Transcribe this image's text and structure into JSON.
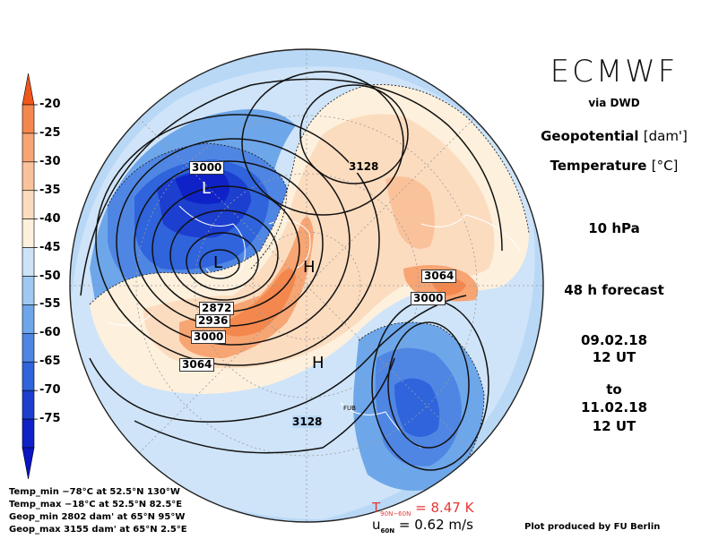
{
  "header": {
    "logo": "ECMWF",
    "via": "via DWD",
    "field1_label": "Geopotential",
    "field1_unit": "[dam']",
    "field2_label": "Temperature",
    "field2_unit": "[°C]",
    "level": "10 hPa",
    "forecast": "48 h forecast",
    "init_date": "09.02.18",
    "init_time": "12 UT",
    "to": "to",
    "valid_date": "11.02.18",
    "valid_time": "12 UT"
  },
  "colorbar": {
    "labels": [
      "-20",
      "-25",
      "-30",
      "-35",
      "-40",
      "-45",
      "-50",
      "-55",
      "-60",
      "-65",
      "-70",
      "-75"
    ],
    "colors": [
      "#f06a2a",
      "#f4874d",
      "#f7a573",
      "#fac29b",
      "#fcdcbf",
      "#fdf0dc",
      "#cde3f7",
      "#9fc9f2",
      "#6ea6ea",
      "#4f86e3",
      "#2f64dc",
      "#1c3fd0",
      "#0f22c8"
    ],
    "over_color": "#f0561a",
    "under_color": "#0a14c4"
  },
  "stats": {
    "temp_min": "Temp_min −78°C at 52.5°N 130°W",
    "temp_max": "Temp_max −18°C at 52.5°N 82.5°E",
    "geop_min": "Geop_min 2802 dam' at 65°N 95°W",
    "geop_max": "Geop_max 3155 dam' at 65°N 2.5°E"
  },
  "footer": {
    "tdiff_symbol": "T",
    "tdiff_sub": "90N−60N",
    "tdiff_value": "= 8.47 K",
    "u_symbol": "u",
    "u_sub": "60N",
    "u_value": "= 0.62 m/s",
    "credit": "Plot produced by FU Berlin"
  },
  "map": {
    "contour_labels": [
      "3000",
      "3128",
      "3064",
      "3000",
      "2872",
      "2936",
      "3000",
      "3064",
      "3128"
    ],
    "low_labels": [
      "L",
      "L"
    ],
    "high_labels": [
      "H",
      "H"
    ],
    "station": "FUB"
  }
}
